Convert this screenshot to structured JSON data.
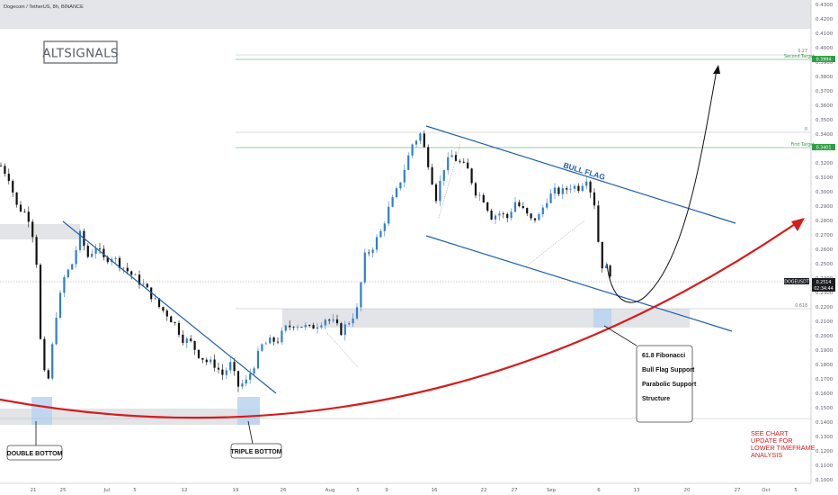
{
  "header": {
    "symbol_line": "Dogecoin / TetherUS, 8h, BINANCE"
  },
  "brand": {
    "logo_text": "ALTSIGNALS"
  },
  "chart_data": {
    "type": "candlestick",
    "title": "Dogecoin / TetherUS, 8h, BINANCE",
    "symbol": "DOGEUSDT",
    "timeframe": "8h",
    "exchange": "BINANCE",
    "y_axis": {
      "side": "right",
      "ylim": [
        0.1,
        0.43
      ],
      "ticks": [
        "0.4300",
        "0.4200",
        "0.4100",
        "0.4000",
        "0.3900",
        "0.3800",
        "0.3700",
        "0.3600",
        "0.3500",
        "0.3400",
        "0.3300",
        "0.3200",
        "0.3100",
        "0.3000",
        "0.2900",
        "0.2800",
        "0.2700",
        "0.2600",
        "0.2500",
        "0.2400",
        "0.2300",
        "0.2200",
        "0.2100",
        "0.2000",
        "0.1900",
        "0.1800",
        "0.1700",
        "0.1600",
        "0.1500",
        "0.1400",
        "0.1300",
        "0.1200",
        "0.1100",
        "0.1000"
      ]
    },
    "x_axis": {
      "ticks": [
        "21",
        "25",
        "Jul",
        "5",
        "12",
        "19",
        "26",
        "Aug",
        "5",
        "9",
        "16",
        "22",
        "27",
        "Sep",
        "6",
        "13",
        "20",
        "27",
        "Oct",
        "5"
      ]
    },
    "price_path": [
      [
        0.0,
        0.318
      ],
      [
        0.5,
        0.31
      ],
      [
        1.0,
        0.29
      ],
      [
        1.7,
        0.284
      ],
      [
        2.2,
        0.262
      ],
      [
        2.6,
        0.175
      ],
      [
        3.0,
        0.17
      ],
      [
        3.5,
        0.215
      ],
      [
        4.0,
        0.24
      ],
      [
        4.5,
        0.25
      ],
      [
        5.0,
        0.27
      ],
      [
        5.5,
        0.255
      ],
      [
        6.0,
        0.262
      ],
      [
        6.5,
        0.253
      ],
      [
        7.0,
        0.255
      ],
      [
        7.5,
        0.25
      ],
      [
        8.0,
        0.245
      ],
      [
        8.5,
        0.24
      ],
      [
        9.0,
        0.235
      ],
      [
        9.5,
        0.228
      ],
      [
        10.0,
        0.22
      ],
      [
        10.5,
        0.215
      ],
      [
        11.0,
        0.208
      ],
      [
        11.5,
        0.198
      ],
      [
        12.0,
        0.195
      ],
      [
        12.5,
        0.187
      ],
      [
        13.0,
        0.182
      ],
      [
        13.5,
        0.18
      ],
      [
        14.0,
        0.173
      ],
      [
        14.5,
        0.18
      ],
      [
        15.0,
        0.165
      ],
      [
        15.5,
        0.168
      ],
      [
        16.0,
        0.18
      ],
      [
        16.5,
        0.193
      ],
      [
        17.0,
        0.196
      ],
      [
        17.5,
        0.197
      ],
      [
        18.0,
        0.205
      ],
      [
        18.5,
        0.208
      ],
      [
        19.0,
        0.207
      ],
      [
        19.5,
        0.205
      ],
      [
        20.0,
        0.208
      ],
      [
        20.5,
        0.212
      ],
      [
        21.0,
        0.209
      ],
      [
        21.5,
        0.203
      ],
      [
        22.0,
        0.21
      ],
      [
        22.5,
        0.218
      ],
      [
        23.0,
        0.255
      ],
      [
        23.5,
        0.262
      ],
      [
        24.0,
        0.272
      ],
      [
        24.5,
        0.288
      ],
      [
        25.0,
        0.3
      ],
      [
        25.5,
        0.316
      ],
      [
        26.0,
        0.333
      ],
      [
        26.5,
        0.34
      ],
      [
        27.0,
        0.32
      ],
      [
        27.5,
        0.296
      ],
      [
        28.0,
        0.317
      ],
      [
        28.5,
        0.325
      ],
      [
        29.0,
        0.32
      ],
      [
        29.5,
        0.315
      ],
      [
        30.0,
        0.3
      ],
      [
        30.5,
        0.295
      ],
      [
        31.0,
        0.283
      ],
      [
        31.5,
        0.285
      ],
      [
        32.0,
        0.282
      ],
      [
        32.5,
        0.293
      ],
      [
        33.0,
        0.287
      ],
      [
        33.5,
        0.28
      ],
      [
        34.0,
        0.283
      ],
      [
        34.5,
        0.295
      ],
      [
        35.0,
        0.3
      ],
      [
        35.5,
        0.3
      ],
      [
        36.0,
        0.304
      ],
      [
        36.5,
        0.303
      ],
      [
        37.0,
        0.31
      ],
      [
        37.5,
        0.292
      ],
      [
        37.9,
        0.25
      ],
      [
        38.5,
        0.244
      ]
    ],
    "pattern_labels": {
      "bull_flag": "BULL FLAG",
      "double_bottom": "DOUBLE BOTTOM",
      "triple_bottom": "TRIPLE BOTTOM"
    },
    "fib_levels": [
      {
        "label": "0.27",
        "value": 0.3994
      },
      {
        "label": "0",
        "value": 0.351
      },
      {
        "label": "0.618",
        "value": 0.232
      }
    ],
    "targets": [
      {
        "name": "Second Target",
        "value": "0.3994",
        "color": "#2e9e45"
      },
      {
        "name": "First Target",
        "value": "0.3401",
        "color": "#2e9e45"
      }
    ],
    "current_price": {
      "symbol": "DOGEUSDT",
      "value": "0.2514",
      "countdown": "02:34:44"
    },
    "support_notes": [
      "61.8 Fibonacci",
      "Bull Flag Support",
      "Parabolic Support",
      "Structure"
    ],
    "footer_note": [
      "SEE CHART",
      "UPDATE FOR",
      "LOWER TIMEFRAME",
      "ANALYSIS"
    ],
    "colors": {
      "up_candle": "#2f7dd6",
      "down_candle": "#111111",
      "trendline": "#1d5fb0",
      "parabolic_curve": "#d61c1c",
      "target_green": "#2e9e45",
      "zone_gray": "#e3e4e8",
      "zone_blue": "#b9d4ef",
      "note_red": "#d61c1c"
    }
  }
}
